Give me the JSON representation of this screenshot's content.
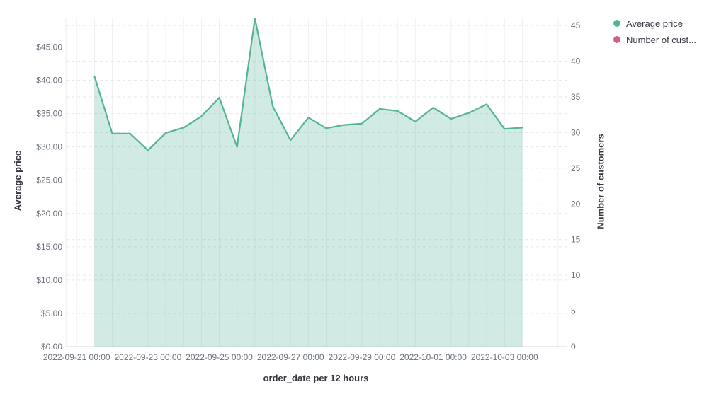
{
  "legend": {
    "position": "top-right",
    "items": [
      {
        "label": "Average price",
        "color": "#54B399"
      },
      {
        "label": "Number of cust...",
        "color": "#D36086"
      }
    ]
  },
  "chart_data": {
    "type": "area",
    "title": "",
    "xlabel": "order_date per 12 hours",
    "ylabel_left": "Average price",
    "ylabel_right": "Number of customers",
    "grid": {
      "vertical": "solid",
      "horizontal": "dashed"
    },
    "x_tick_labels": [
      "2022-09-21 00:00",
      "2022-09-23 00:00",
      "2022-09-25 00:00",
      "2022-09-27 00:00",
      "2022-09-29 00:00",
      "2022-10-01 00:00",
      "2022-10-03 00:00"
    ],
    "y_left_axis": {
      "max": 49.3,
      "ticks": [
        [
          0,
          "$0.00"
        ],
        [
          5,
          "$5.00"
        ],
        [
          10,
          "$10.00"
        ],
        [
          15,
          "$15.00"
        ],
        [
          20,
          "$20.00"
        ],
        [
          25,
          "$25.00"
        ],
        [
          30,
          "$30.00"
        ],
        [
          35,
          "$35.00"
        ],
        [
          40,
          "$40.00"
        ],
        [
          45,
          "$45.00"
        ]
      ]
    },
    "y_right_axis": {
      "max": 46,
      "ticks": [
        [
          0,
          "0"
        ],
        [
          5,
          "5"
        ],
        [
          10,
          "10"
        ],
        [
          15,
          "15"
        ],
        [
          20,
          "20"
        ],
        [
          25,
          "25"
        ],
        [
          30,
          "30"
        ],
        [
          35,
          "35"
        ],
        [
          40,
          "40"
        ],
        [
          45,
          "45"
        ]
      ]
    },
    "series": [
      {
        "name": "Average price",
        "color": "#54B399",
        "fill_opacity": 0.27,
        "x": [
          "2022-09-21 12:00",
          "2022-09-22 00:00",
          "2022-09-22 12:00",
          "2022-09-23 00:00",
          "2022-09-23 12:00",
          "2022-09-24 00:00",
          "2022-09-24 12:00",
          "2022-09-25 00:00",
          "2022-09-25 12:00",
          "2022-09-26 00:00",
          "2022-09-26 12:00",
          "2022-09-27 00:00",
          "2022-09-27 12:00",
          "2022-09-28 00:00",
          "2022-09-28 12:00",
          "2022-09-29 00:00",
          "2022-09-29 12:00",
          "2022-09-30 00:00",
          "2022-09-30 12:00",
          "2022-10-01 00:00",
          "2022-10-01 12:00",
          "2022-10-02 00:00",
          "2022-10-02 12:00",
          "2022-10-03 00:00",
          "2022-10-03 12:00"
        ],
        "values": [
          40.6,
          32.0,
          32.0,
          29.5,
          32.1,
          32.9,
          34.6,
          37.4,
          30.0,
          49.3,
          36.1,
          31.0,
          34.4,
          32.8,
          33.3,
          33.5,
          35.7,
          35.4,
          33.8,
          35.9,
          34.2,
          35.1,
          36.4,
          32.7,
          32.9
        ]
      }
    ]
  }
}
